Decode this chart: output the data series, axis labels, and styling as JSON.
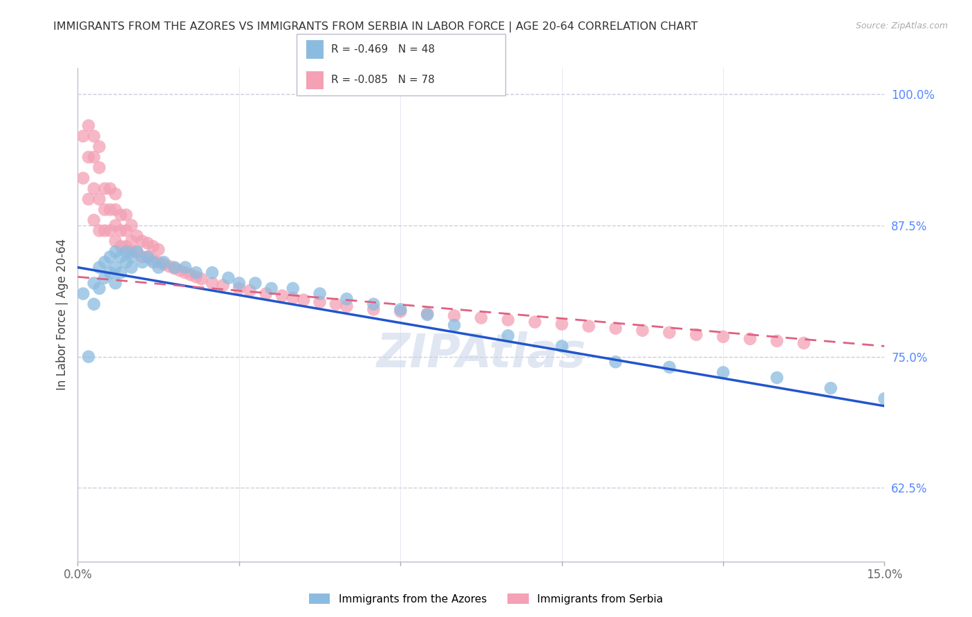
{
  "title": "IMMIGRANTS FROM THE AZORES VS IMMIGRANTS FROM SERBIA IN LABOR FORCE | AGE 20-64 CORRELATION CHART",
  "source": "Source: ZipAtlas.com",
  "ylabel": "In Labor Force | Age 20-64",
  "x_min": 0.0,
  "x_max": 0.15,
  "y_min": 0.555,
  "y_max": 1.025,
  "x_ticks": [
    0.0,
    0.03,
    0.06,
    0.09,
    0.12,
    0.15
  ],
  "x_tick_labels": [
    "0.0%",
    "",
    "",
    "",
    "",
    "15.0%"
  ],
  "y_tick_labels_right": [
    "100.0%",
    "87.5%",
    "75.0%",
    "62.5%"
  ],
  "y_ticks_right": [
    1.0,
    0.875,
    0.75,
    0.625
  ],
  "azores_color": "#8BBCDF",
  "serbia_color": "#F4A0B5",
  "azores_line_color": "#2255CC",
  "serbia_line_color": "#E06080",
  "grid_color": "#CCCCDD",
  "background_color": "#FFFFFF",
  "watermark": "ZIPAtlas",
  "legend_R_azores": "-0.469",
  "legend_N_azores": "48",
  "legend_R_serbia": "-0.085",
  "legend_N_serbia": "78",
  "azores_scatter_x": [
    0.001,
    0.002,
    0.003,
    0.003,
    0.004,
    0.004,
    0.005,
    0.005,
    0.006,
    0.006,
    0.007,
    0.007,
    0.007,
    0.008,
    0.008,
    0.009,
    0.009,
    0.01,
    0.01,
    0.011,
    0.012,
    0.013,
    0.014,
    0.015,
    0.016,
    0.018,
    0.02,
    0.022,
    0.025,
    0.028,
    0.03,
    0.033,
    0.036,
    0.04,
    0.045,
    0.05,
    0.055,
    0.06,
    0.065,
    0.07,
    0.08,
    0.09,
    0.1,
    0.11,
    0.12,
    0.13,
    0.14,
    0.15
  ],
  "azores_scatter_y": [
    0.81,
    0.75,
    0.82,
    0.8,
    0.835,
    0.815,
    0.84,
    0.825,
    0.845,
    0.83,
    0.85,
    0.835,
    0.82,
    0.845,
    0.83,
    0.85,
    0.84,
    0.845,
    0.835,
    0.85,
    0.84,
    0.845,
    0.84,
    0.835,
    0.84,
    0.835,
    0.835,
    0.83,
    0.83,
    0.825,
    0.82,
    0.82,
    0.815,
    0.815,
    0.81,
    0.805,
    0.8,
    0.795,
    0.79,
    0.78,
    0.77,
    0.76,
    0.745,
    0.74,
    0.735,
    0.73,
    0.72,
    0.71
  ],
  "serbia_scatter_x": [
    0.001,
    0.001,
    0.002,
    0.002,
    0.002,
    0.003,
    0.003,
    0.003,
    0.003,
    0.004,
    0.004,
    0.004,
    0.004,
    0.005,
    0.005,
    0.005,
    0.006,
    0.006,
    0.006,
    0.007,
    0.007,
    0.007,
    0.007,
    0.008,
    0.008,
    0.008,
    0.009,
    0.009,
    0.009,
    0.01,
    0.01,
    0.01,
    0.011,
    0.011,
    0.012,
    0.012,
    0.013,
    0.013,
    0.014,
    0.014,
    0.015,
    0.015,
    0.016,
    0.017,
    0.018,
    0.019,
    0.02,
    0.021,
    0.022,
    0.023,
    0.025,
    0.027,
    0.03,
    0.032,
    0.035,
    0.038,
    0.04,
    0.042,
    0.045,
    0.048,
    0.05,
    0.055,
    0.06,
    0.065,
    0.07,
    0.075,
    0.08,
    0.085,
    0.09,
    0.095,
    0.1,
    0.105,
    0.11,
    0.115,
    0.12,
    0.125,
    0.13,
    0.135
  ],
  "serbia_scatter_y": [
    0.92,
    0.96,
    0.9,
    0.94,
    0.97,
    0.88,
    0.91,
    0.94,
    0.96,
    0.87,
    0.9,
    0.93,
    0.95,
    0.87,
    0.89,
    0.91,
    0.87,
    0.89,
    0.91,
    0.86,
    0.875,
    0.89,
    0.905,
    0.855,
    0.87,
    0.885,
    0.855,
    0.87,
    0.885,
    0.85,
    0.86,
    0.875,
    0.85,
    0.865,
    0.845,
    0.86,
    0.845,
    0.858,
    0.842,
    0.855,
    0.84,
    0.852,
    0.838,
    0.836,
    0.834,
    0.832,
    0.83,
    0.828,
    0.826,
    0.824,
    0.82,
    0.818,
    0.815,
    0.813,
    0.81,
    0.808,
    0.806,
    0.804,
    0.802,
    0.8,
    0.798,
    0.795,
    0.793,
    0.791,
    0.789,
    0.787,
    0.785,
    0.783,
    0.781,
    0.779,
    0.777,
    0.775,
    0.773,
    0.771,
    0.769,
    0.767,
    0.765,
    0.763
  ],
  "azores_line_x0": 0.0,
  "azores_line_x1": 0.15,
  "azores_line_y0": 0.835,
  "azores_line_y1": 0.703,
  "serbia_line_x0": 0.0,
  "serbia_line_x1": 0.15,
  "serbia_line_y0": 0.826,
  "serbia_line_y1": 0.76
}
